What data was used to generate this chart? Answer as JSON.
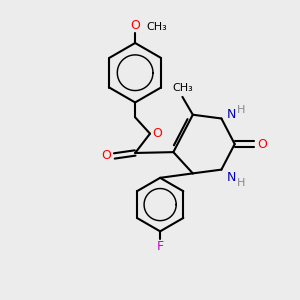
{
  "bg_color": "#ececec",
  "bond_color": "#000000",
  "bond_width": 1.5,
  "o_color": "#ff0000",
  "n_color": "#0000bb",
  "f_color": "#cc00cc",
  "fig_size": [
    3.0,
    3.0
  ],
  "dpi": 100,
  "xlim": [
    0,
    10
  ],
  "ylim": [
    0,
    10
  ]
}
